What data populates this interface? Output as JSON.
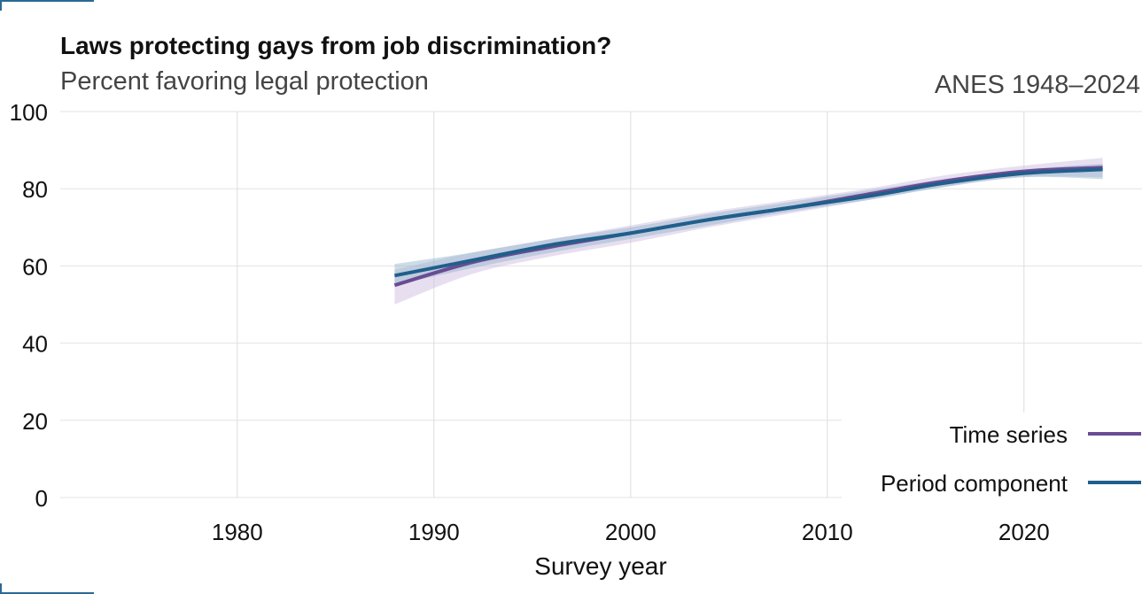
{
  "header": {
    "title": "Laws protecting gays from job discrimination?",
    "subtitle": "Percent favoring legal protection",
    "source": "ANES 1948–2024"
  },
  "chart_data": {
    "type": "line",
    "title": "Laws protecting gays from job discrimination?",
    "subtitle": "Percent favoring legal protection",
    "xlabel": "Survey year",
    "ylabel": "",
    "xlim": [
      1971,
      2026
    ],
    "ylim": [
      0,
      100
    ],
    "x_ticks": [
      1980,
      1990,
      2000,
      2010,
      2020
    ],
    "y_ticks": [
      0,
      20,
      40,
      60,
      80,
      100
    ],
    "grid": true,
    "legend_position": "bottom-right",
    "series": [
      {
        "name": "Time series",
        "color": "#6a4c93",
        "band_color": "#c9b8de",
        "x": [
          1988,
          1992,
          1996,
          2000,
          2004,
          2008,
          2012,
          2016,
          2020,
          2024
        ],
        "y": [
          55,
          61,
          65,
          68.5,
          72,
          75,
          78.5,
          82,
          84.5,
          85.5
        ],
        "lower": [
          50,
          58,
          62.5,
          66,
          70,
          73.5,
          77,
          80.5,
          83,
          83
        ],
        "upper": [
          59,
          63.5,
          67,
          70.5,
          74,
          77,
          80,
          83.5,
          86,
          88
        ]
      },
      {
        "name": "Period component",
        "color": "#1f5f8b",
        "band_color": "#8fb3c9",
        "x": [
          1988,
          1992,
          1996,
          2000,
          2004,
          2008,
          2012,
          2016,
          2020,
          2024
        ],
        "y": [
          57.5,
          61.5,
          65.5,
          68.5,
          72,
          75,
          78,
          81.5,
          84,
          85
        ],
        "lower": [
          55,
          59.5,
          63.5,
          67,
          70.5,
          74,
          77,
          80.5,
          83,
          82.5
        ],
        "upper": [
          60.5,
          63.5,
          67,
          70,
          73.5,
          76.5,
          79.5,
          82.5,
          85,
          86.5
        ]
      }
    ]
  }
}
